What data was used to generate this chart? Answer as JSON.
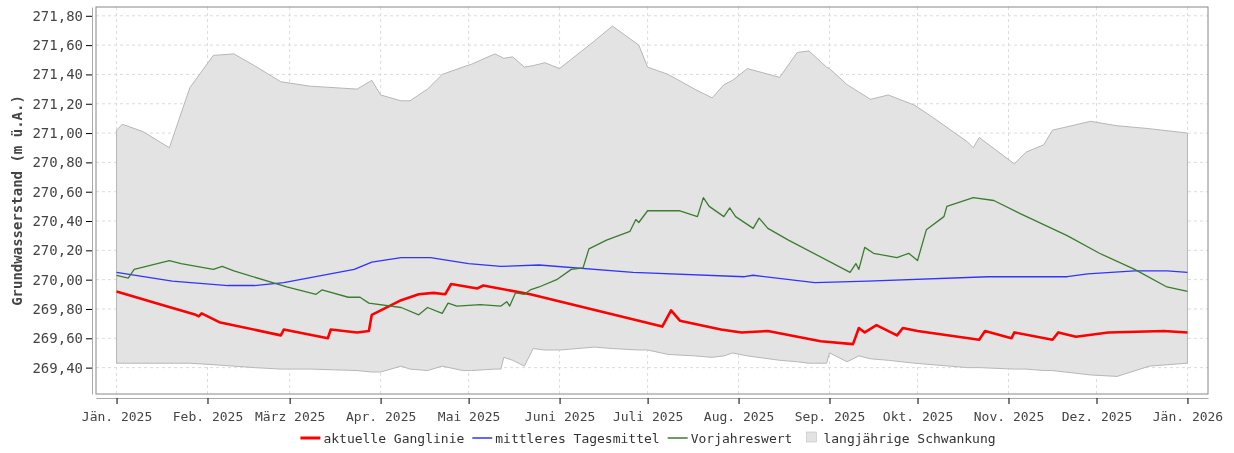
{
  "chart_data": {
    "type": "line",
    "ylabel": "Grundwasserstand (m ü.A.)",
    "xlim": [
      "2024-12-25",
      "2026-01-08"
    ],
    "ylim": [
      269.22,
      271.86
    ],
    "xticks": [
      {
        "value": "2025-01-01",
        "label": "Jän. 2025"
      },
      {
        "value": "2025-02-01",
        "label": "Feb. 2025"
      },
      {
        "value": "2025-03-01",
        "label": "März 2025"
      },
      {
        "value": "2025-04-01",
        "label": "Apr. 2025"
      },
      {
        "value": "2025-05-01",
        "label": "Mai 2025"
      },
      {
        "value": "2025-06-01",
        "label": "Juni 2025"
      },
      {
        "value": "2025-07-01",
        "label": "Juli 2025"
      },
      {
        "value": "2025-08-01",
        "label": "Aug. 2025"
      },
      {
        "value": "2025-09-01",
        "label": "Sep. 2025"
      },
      {
        "value": "2025-10-01",
        "label": "Okt. 2025"
      },
      {
        "value": "2025-11-01",
        "label": "Nov. 2025"
      },
      {
        "value": "2025-12-01",
        "label": "Dez. 2025"
      },
      {
        "value": "2026-01-01",
        "label": "Jän. 2026"
      }
    ],
    "yticks": [
      {
        "value": 269.4,
        "label": "269,40"
      },
      {
        "value": 269.6,
        "label": "269,60"
      },
      {
        "value": 269.8,
        "label": "269,80"
      },
      {
        "value": 270.0,
        "label": "270,00"
      },
      {
        "value": 270.2,
        "label": "270,20"
      },
      {
        "value": 270.4,
        "label": "270,40"
      },
      {
        "value": 270.6,
        "label": "270,60"
      },
      {
        "value": 270.8,
        "label": "270,80"
      },
      {
        "value": 271.0,
        "label": "271,00"
      },
      {
        "value": 271.2,
        "label": "271,20"
      },
      {
        "value": 271.4,
        "label": "271,40"
      },
      {
        "value": 271.6,
        "label": "271,60"
      },
      {
        "value": 271.8,
        "label": "271,80"
      }
    ],
    "grid": true,
    "legend": "bottom",
    "line_style": "solid",
    "series": [
      {
        "name": "aktuelle Ganglinie",
        "color": "#ff0000",
        "x": [
          "2025-01-01",
          "2025-01-16",
          "2025-01-28",
          "2025-01-29",
          "2025-01-30",
          "2025-02-05",
          "2025-02-26",
          "2025-02-27",
          "2025-03-14",
          "2025-03-15",
          "2025-03-24",
          "2025-03-28",
          "2025-03-29",
          "2025-04-08",
          "2025-04-14",
          "2025-04-19",
          "2025-04-23",
          "2025-04-25",
          "2025-05-04",
          "2025-05-06",
          "2025-05-22",
          "2025-07-06",
          "2025-07-09",
          "2025-07-12",
          "2025-07-26",
          "2025-08-02",
          "2025-08-11",
          "2025-08-29",
          "2025-09-09",
          "2025-09-11",
          "2025-09-13",
          "2025-09-17",
          "2025-09-24",
          "2025-09-26",
          "2025-10-01",
          "2025-10-22",
          "2025-10-24",
          "2025-11-02",
          "2025-11-03",
          "2025-11-16",
          "2025-11-18",
          "2025-11-24",
          "2025-12-05",
          "2025-12-24",
          "2026-01-01"
        ],
        "values": [
          269.92,
          269.83,
          269.76,
          269.75,
          269.77,
          269.71,
          269.62,
          269.66,
          269.6,
          269.66,
          269.64,
          269.65,
          269.76,
          269.86,
          269.9,
          269.91,
          269.9,
          269.97,
          269.94,
          269.96,
          269.9,
          269.68,
          269.79,
          269.72,
          269.66,
          269.64,
          269.65,
          269.58,
          269.56,
          269.67,
          269.64,
          269.69,
          269.62,
          269.67,
          269.65,
          269.59,
          269.65,
          269.6,
          269.64,
          269.59,
          269.64,
          269.61,
          269.64,
          269.65,
          269.64
        ]
      },
      {
        "name": "mittleres Tagesmittel",
        "color": "#3333ff",
        "x": [
          "2025-01-01",
          "2025-01-20",
          "2025-02-08",
          "2025-02-17",
          "2025-02-27",
          "2025-03-23",
          "2025-03-29",
          "2025-04-08",
          "2025-04-18",
          "2025-05-01",
          "2025-05-12",
          "2025-05-25",
          "2025-06-26",
          "2025-08-03",
          "2025-08-06",
          "2025-08-27",
          "2025-09-14",
          "2025-10-25",
          "2025-11-21",
          "2025-11-28",
          "2025-12-14",
          "2025-12-25",
          "2026-01-01"
        ],
        "values": [
          270.05,
          269.99,
          269.96,
          269.96,
          269.98,
          270.07,
          270.12,
          270.15,
          270.15,
          270.11,
          270.09,
          270.1,
          270.05,
          270.02,
          270.03,
          269.98,
          269.99,
          270.02,
          270.02,
          270.04,
          270.06,
          270.06,
          270.05
        ]
      },
      {
        "name": "Vorjahreswert",
        "color": "#3a7d2e",
        "x": [
          "2025-01-01",
          "2025-01-05",
          "2025-01-07",
          "2025-01-19",
          "2025-01-23",
          "2025-02-03",
          "2025-02-06",
          "2025-02-10",
          "2025-02-28",
          "2025-03-10",
          "2025-03-12",
          "2025-03-21",
          "2025-03-25",
          "2025-03-28",
          "2025-04-08",
          "2025-04-14",
          "2025-04-17",
          "2025-04-22",
          "2025-04-24",
          "2025-04-27",
          "2025-05-05",
          "2025-05-12",
          "2025-05-14",
          "2025-05-15",
          "2025-05-17",
          "2025-05-20",
          "2025-05-22",
          "2025-05-25",
          "2025-05-31",
          "2025-06-05",
          "2025-06-09",
          "2025-06-11",
          "2025-06-17",
          "2025-06-25",
          "2025-06-27",
          "2025-06-28",
          "2025-07-01",
          "2025-07-12",
          "2025-07-18",
          "2025-07-20",
          "2025-07-22",
          "2025-07-27",
          "2025-07-29",
          "2025-07-31",
          "2025-08-06",
          "2025-08-08",
          "2025-08-11",
          "2025-08-18",
          "2025-09-08",
          "2025-09-10",
          "2025-09-11",
          "2025-09-13",
          "2025-09-16",
          "2025-09-24",
          "2025-09-28",
          "2025-10-01",
          "2025-10-04",
          "2025-10-10",
          "2025-10-11",
          "2025-10-20",
          "2025-10-27",
          "2025-11-05",
          "2025-11-21",
          "2025-12-02",
          "2025-12-14",
          "2025-12-25",
          "2026-01-01"
        ],
        "values": [
          270.03,
          270.01,
          270.07,
          270.13,
          270.11,
          270.07,
          270.09,
          270.06,
          269.95,
          269.9,
          269.93,
          269.88,
          269.88,
          269.84,
          269.81,
          269.76,
          269.81,
          269.77,
          269.84,
          269.82,
          269.83,
          269.82,
          269.85,
          269.82,
          269.91,
          269.9,
          269.93,
          269.95,
          270.0,
          270.07,
          270.08,
          270.21,
          270.27,
          270.33,
          270.41,
          270.39,
          270.47,
          270.47,
          270.43,
          270.56,
          270.5,
          270.43,
          270.49,
          270.43,
          270.35,
          270.42,
          270.35,
          270.27,
          270.05,
          270.11,
          270.07,
          270.22,
          270.18,
          270.15,
          270.18,
          270.13,
          270.34,
          270.43,
          270.5,
          270.56,
          270.54,
          270.45,
          270.3,
          270.18,
          270.07,
          269.95,
          269.92
        ]
      },
      {
        "name": "langjährige Schwankung",
        "type": "area",
        "color": "#e3e3e3",
        "x": [
          "2025-01-01",
          "2025-01-03",
          "2025-01-10",
          "2025-01-19",
          "2025-01-26",
          "2025-02-03",
          "2025-02-10",
          "2025-02-17",
          "2025-02-26",
          "2025-03-08",
          "2025-03-24",
          "2025-03-29",
          "2025-04-01",
          "2025-04-08",
          "2025-04-11",
          "2025-04-17",
          "2025-04-22",
          "2025-04-29",
          "2025-05-02",
          "2025-05-10",
          "2025-05-12",
          "2025-05-13",
          "2025-05-16",
          "2025-05-20",
          "2025-05-23",
          "2025-05-27",
          "2025-06-01",
          "2025-06-13",
          "2025-06-19",
          "2025-06-28",
          "2025-07-01",
          "2025-07-08",
          "2025-07-17",
          "2025-07-23",
          "2025-07-27",
          "2025-07-30",
          "2025-08-04",
          "2025-08-15",
          "2025-08-21",
          "2025-08-25",
          "2025-08-31",
          "2025-09-01",
          "2025-09-07",
          "2025-09-11",
          "2025-09-15",
          "2025-09-21",
          "2025-09-30",
          "2025-10-06",
          "2025-10-18",
          "2025-10-20",
          "2025-10-22",
          "2025-11-03",
          "2025-11-07",
          "2025-11-13",
          "2025-11-16",
          "2025-11-29",
          "2025-12-08",
          "2025-12-19",
          "2026-01-01"
        ],
        "values": [
          null,
          null,
          null,
          null,
          null,
          null,
          null,
          null,
          null,
          null,
          null,
          null,
          null,
          null,
          null,
          null,
          null,
          null,
          null,
          null,
          null,
          null,
          null,
          null,
          null,
          null,
          null,
          null,
          null,
          null,
          null,
          null,
          null,
          null,
          null,
          null,
          null,
          null,
          null,
          null,
          null,
          null,
          null,
          null,
          null,
          null,
          null,
          null,
          null,
          null,
          null,
          null,
          null,
          null,
          null,
          null,
          null,
          null,
          null
        ],
        "upper": [
          271.02,
          271.06,
          271.01,
          270.9,
          271.31,
          271.53,
          271.54,
          271.46,
          271.35,
          271.32,
          271.3,
          271.36,
          271.26,
          271.22,
          271.22,
          271.3,
          271.4,
          271.45,
          271.47,
          271.54,
          271.52,
          271.51,
          271.52,
          271.45,
          271.46,
          271.48,
          271.44,
          271.63,
          271.73,
          271.6,
          271.45,
          271.4,
          271.3,
          271.24,
          271.33,
          271.36,
          271.44,
          271.38,
          271.55,
          271.56,
          271.45,
          271.44,
          271.33,
          271.28,
          271.23,
          271.26,
          271.19,
          271.11,
          270.94,
          270.9,
          270.97,
          270.79,
          270.87,
          270.92,
          271.02,
          271.08,
          271.05,
          271.03,
          271.0
        ],
        "lower": [
          269.43,
          269.43,
          269.43,
          269.43,
          269.43,
          269.42,
          269.41,
          269.4,
          269.39,
          269.39,
          269.38,
          269.37,
          269.37,
          269.41,
          269.39,
          269.38,
          269.41,
          269.38,
          269.38,
          269.39,
          269.39,
          269.47,
          269.45,
          269.41,
          269.53,
          269.52,
          269.52,
          269.54,
          269.53,
          269.52,
          269.52,
          269.49,
          269.48,
          269.47,
          269.48,
          269.5,
          269.48,
          269.45,
          269.44,
          269.43,
          269.43,
          269.5,
          269.44,
          269.48,
          269.46,
          269.45,
          269.43,
          269.42,
          269.4,
          269.4,
          269.4,
          269.39,
          269.39,
          269.38,
          269.38,
          269.35,
          269.34,
          269.41,
          269.43
        ]
      }
    ]
  }
}
